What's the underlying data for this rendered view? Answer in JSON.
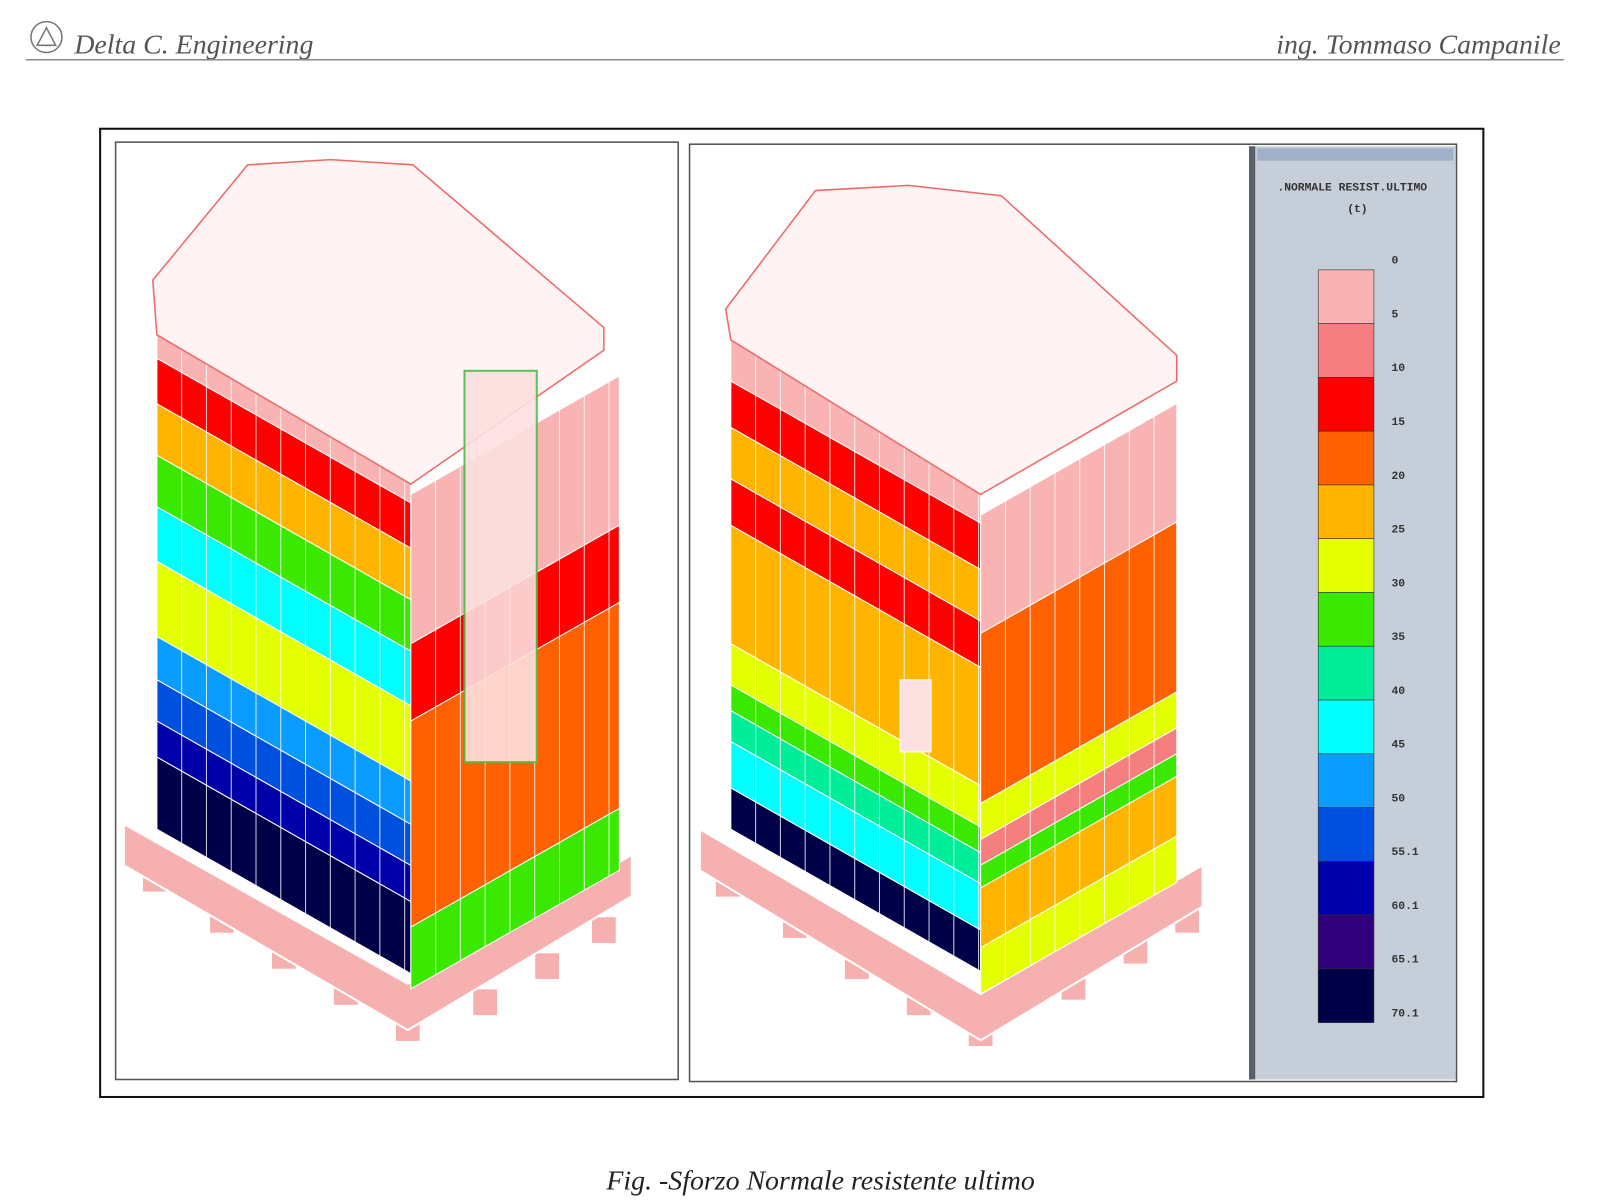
{
  "header": {
    "left": "Delta C. Engineering",
    "right": "ing. Tommaso Campanile"
  },
  "figure": {
    "legend": {
      "title": ".NORMALE RESIST.ULTIMO",
      "unit": "(t)",
      "labels": [
        0,
        5,
        10,
        15,
        20,
        25,
        30,
        35,
        40,
        45,
        50,
        55.1,
        60.1,
        65.1,
        70.1
      ],
      "colors": [
        "#f9b3b3",
        "#f57e7e",
        "#ff0000",
        "#ff6000",
        "#ffb400",
        "#e4ff00",
        "#3ae800",
        "#00ee9a",
        "#00ffff",
        "#0a9cff",
        "#0050e0",
        "#0000aa",
        "#30007a",
        "#000048"
      ]
    }
  },
  "caption": "Fig. -Sforzo Normale resistente ultimo"
}
